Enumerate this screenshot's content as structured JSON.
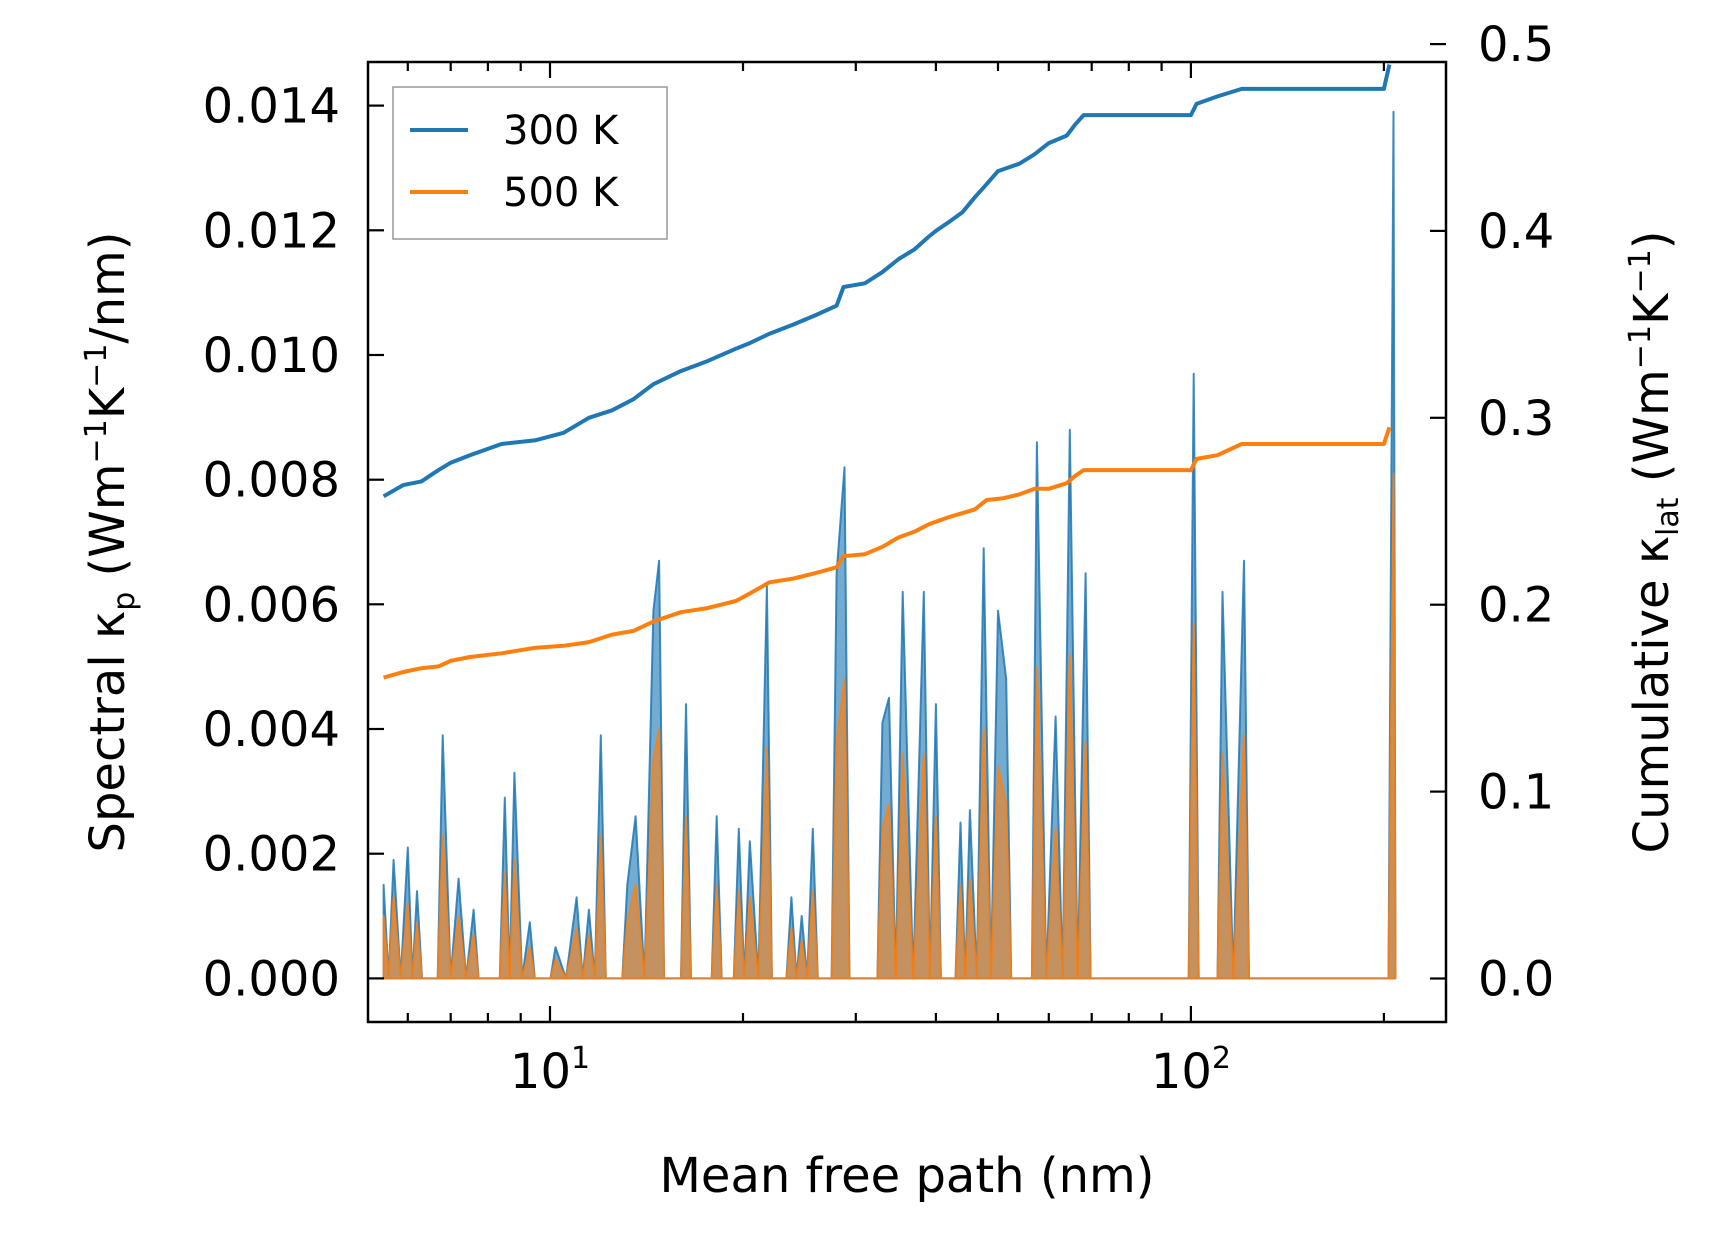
{
  "chart_data": {
    "type": "line",
    "xscale": "log",
    "xlim": [
      5.2,
      250
    ],
    "ylim_left": [
      -0.0007,
      0.0147
    ],
    "ylim_right": [
      -0.0233,
      0.4904
    ],
    "xlabel": "Mean free path (nm)",
    "ylabel_left": {
      "main": "Spectral κ",
      "sub": "p",
      "unit_open": " (Wm",
      "sup1": "−1",
      "mid": "K",
      "sup2": "−1",
      "unit_close": "/nm)"
    },
    "ylabel_right": {
      "main": "Cumulative κ",
      "sub": "lat",
      "unit_open": " (Wm",
      "sup1": "−1",
      "mid": "K",
      "sup2": "−1",
      "unit_close": ")"
    },
    "x_ticks": [
      {
        "value": 10,
        "base": "10",
        "exp": "1"
      },
      {
        "value": 100,
        "base": "10",
        "exp": "2"
      }
    ],
    "y_left_ticks": [
      {
        "value": 0.0,
        "label": "0.000"
      },
      {
        "value": 0.002,
        "label": "0.002"
      },
      {
        "value": 0.004,
        "label": "0.004"
      },
      {
        "value": 0.006,
        "label": "0.006"
      },
      {
        "value": 0.008,
        "label": "0.008"
      },
      {
        "value": 0.01,
        "label": "0.010"
      },
      {
        "value": 0.012,
        "label": "0.012"
      },
      {
        "value": 0.014,
        "label": "0.014"
      }
    ],
    "y_right_ticks": [
      {
        "value": 0.0,
        "label": "0.0"
      },
      {
        "value": 0.1,
        "label": "0.1"
      },
      {
        "value": 0.2,
        "label": "0.2"
      },
      {
        "value": 0.3,
        "label": "0.3"
      },
      {
        "value": 0.4,
        "label": "0.4"
      },
      {
        "value": 0.5,
        "label": "0.5"
      }
    ],
    "legend": {
      "position": "top-left",
      "entries": [
        "300 K",
        "500 K"
      ]
    },
    "series": [
      {
        "name": "300 K",
        "color": "#1f77b4",
        "cumulative_points": [
          [
            5.5,
            0.258
          ],
          [
            5.9,
            0.264
          ],
          [
            6.3,
            0.266
          ],
          [
            6.7,
            0.272
          ],
          [
            7.0,
            0.276
          ],
          [
            7.5,
            0.28
          ],
          [
            8.4,
            0.286
          ],
          [
            9.5,
            0.288
          ],
          [
            10.5,
            0.292
          ],
          [
            11.5,
            0.3
          ],
          [
            12.5,
            0.304
          ],
          [
            13.5,
            0.31
          ],
          [
            14.5,
            0.318
          ],
          [
            16,
            0.325
          ],
          [
            17.5,
            0.33
          ],
          [
            19.5,
            0.337
          ],
          [
            20.5,
            0.34
          ],
          [
            22,
            0.345
          ],
          [
            24,
            0.35
          ],
          [
            26,
            0.355
          ],
          [
            28,
            0.36
          ],
          [
            28.7,
            0.37
          ],
          [
            31,
            0.372
          ],
          [
            33,
            0.378
          ],
          [
            35,
            0.385
          ],
          [
            37,
            0.39
          ],
          [
            39,
            0.397
          ],
          [
            40,
            0.4
          ],
          [
            42,
            0.405
          ],
          [
            44,
            0.41
          ],
          [
            46,
            0.418
          ],
          [
            48,
            0.425
          ],
          [
            50,
            0.432
          ],
          [
            54,
            0.436
          ],
          [
            57,
            0.441
          ],
          [
            60,
            0.447
          ],
          [
            64,
            0.451
          ],
          [
            66,
            0.457
          ],
          [
            68,
            0.462
          ],
          [
            80,
            0.462
          ],
          [
            100,
            0.462
          ],
          [
            102,
            0.468
          ],
          [
            110,
            0.472
          ],
          [
            120,
            0.476
          ],
          [
            200,
            0.476
          ],
          [
            204,
            0.489
          ]
        ],
        "spectral_peaks": [
          [
            5.5,
            0.0015
          ],
          [
            5.7,
            0.0019
          ],
          [
            6.0,
            0.0021
          ],
          [
            6.2,
            0.0014
          ],
          [
            6.8,
            0.0039
          ],
          [
            7.2,
            0.0016
          ],
          [
            7.6,
            0.0011
          ],
          [
            8.5,
            0.0029
          ],
          [
            8.8,
            0.0033
          ],
          [
            9.3,
            0.0009
          ],
          [
            10.2,
            0.0005
          ],
          [
            11.0,
            0.0013
          ],
          [
            11.5,
            0.0011
          ],
          [
            12.0,
            0.0039
          ],
          [
            13.2,
            0.0015
          ],
          [
            13.6,
            0.0026
          ],
          [
            14.5,
            0.0059
          ],
          [
            14.8,
            0.0067
          ],
          [
            16.3,
            0.0044
          ],
          [
            18.2,
            0.0026
          ],
          [
            19.7,
            0.0024
          ],
          [
            20.5,
            0.0022
          ],
          [
            21.8,
            0.0063
          ],
          [
            23.8,
            0.0013
          ],
          [
            24.7,
            0.001
          ],
          [
            25.7,
            0.0024
          ],
          [
            28.0,
            0.0065
          ],
          [
            28.8,
            0.0082
          ],
          [
            33.0,
            0.0041
          ],
          [
            33.8,
            0.0045
          ],
          [
            35.5,
            0.0062
          ],
          [
            38.3,
            0.0062
          ],
          [
            40.0,
            0.0044
          ],
          [
            43.7,
            0.0025
          ],
          [
            45.2,
            0.0027
          ],
          [
            47.5,
            0.0069
          ],
          [
            50.0,
            0.0059
          ],
          [
            51.5,
            0.0048
          ],
          [
            57.5,
            0.0086
          ],
          [
            61.5,
            0.0042
          ],
          [
            64.7,
            0.0088
          ],
          [
            68.5,
            0.0065
          ],
          [
            101.0,
            0.0097
          ],
          [
            112.0,
            0.0062
          ],
          [
            121.0,
            0.0067
          ],
          [
            207.0,
            0.0139
          ]
        ]
      },
      {
        "name": "500 K",
        "color": "#ff7f0e",
        "cumulative_points": [
          [
            5.5,
            0.161
          ],
          [
            5.9,
            0.164
          ],
          [
            6.3,
            0.166
          ],
          [
            6.7,
            0.167
          ],
          [
            7.0,
            0.17
          ],
          [
            7.5,
            0.172
          ],
          [
            8.4,
            0.174
          ],
          [
            9.5,
            0.177
          ],
          [
            10.5,
            0.178
          ],
          [
            11.5,
            0.18
          ],
          [
            12.5,
            0.184
          ],
          [
            13.5,
            0.186
          ],
          [
            14.5,
            0.191
          ],
          [
            16,
            0.196
          ],
          [
            17.5,
            0.198
          ],
          [
            19.5,
            0.202
          ],
          [
            20.5,
            0.206
          ],
          [
            22,
            0.212
          ],
          [
            24,
            0.214
          ],
          [
            26,
            0.217
          ],
          [
            28,
            0.22
          ],
          [
            28.7,
            0.226
          ],
          [
            31,
            0.227
          ],
          [
            33,
            0.231
          ],
          [
            35,
            0.236
          ],
          [
            37,
            0.239
          ],
          [
            39,
            0.243
          ],
          [
            42,
            0.247
          ],
          [
            46,
            0.251
          ],
          [
            48,
            0.256
          ],
          [
            51,
            0.257
          ],
          [
            54,
            0.259
          ],
          [
            57,
            0.262
          ],
          [
            60,
            0.262
          ],
          [
            64,
            0.265
          ],
          [
            66,
            0.269
          ],
          [
            68,
            0.272
          ],
          [
            80,
            0.272
          ],
          [
            100,
            0.272
          ],
          [
            102,
            0.278
          ],
          [
            110,
            0.28
          ],
          [
            120,
            0.286
          ],
          [
            200,
            0.286
          ],
          [
            204,
            0.295
          ]
        ],
        "spectral_peaks": [
          [
            5.5,
            0.001
          ],
          [
            5.7,
            0.0013
          ],
          [
            6.0,
            0.0012
          ],
          [
            6.2,
            0.0009
          ],
          [
            6.8,
            0.0023
          ],
          [
            7.2,
            0.001
          ],
          [
            7.6,
            0.0007
          ],
          [
            8.5,
            0.0017
          ],
          [
            8.8,
            0.0019
          ],
          [
            9.3,
            0.0005
          ],
          [
            10.2,
            0.0003
          ],
          [
            11.0,
            0.0008
          ],
          [
            11.5,
            0.0007
          ],
          [
            12.0,
            0.0023
          ],
          [
            13.2,
            0.0009
          ],
          [
            13.6,
            0.0015
          ],
          [
            14.5,
            0.0035
          ],
          [
            14.8,
            0.004
          ],
          [
            16.3,
            0.0026
          ],
          [
            18.2,
            0.0015
          ],
          [
            19.7,
            0.0014
          ],
          [
            20.5,
            0.0013
          ],
          [
            21.8,
            0.0037
          ],
          [
            23.8,
            0.0008
          ],
          [
            24.7,
            0.0006
          ],
          [
            25.7,
            0.0014
          ],
          [
            28.0,
            0.0038
          ],
          [
            28.8,
            0.0048
          ],
          [
            33.0,
            0.0024
          ],
          [
            33.8,
            0.0028
          ],
          [
            35.5,
            0.0036
          ],
          [
            38.3,
            0.0036
          ],
          [
            40.0,
            0.0026
          ],
          [
            43.7,
            0.0015
          ],
          [
            45.2,
            0.0016
          ],
          [
            47.5,
            0.004
          ],
          [
            50.0,
            0.0034
          ],
          [
            51.5,
            0.0028
          ],
          [
            57.5,
            0.005
          ],
          [
            61.5,
            0.0024
          ],
          [
            64.7,
            0.0052
          ],
          [
            68.5,
            0.0038
          ],
          [
            101.0,
            0.0057
          ],
          [
            112.0,
            0.0036
          ],
          [
            121.0,
            0.0039
          ],
          [
            207.0,
            0.0081
          ]
        ]
      }
    ]
  }
}
